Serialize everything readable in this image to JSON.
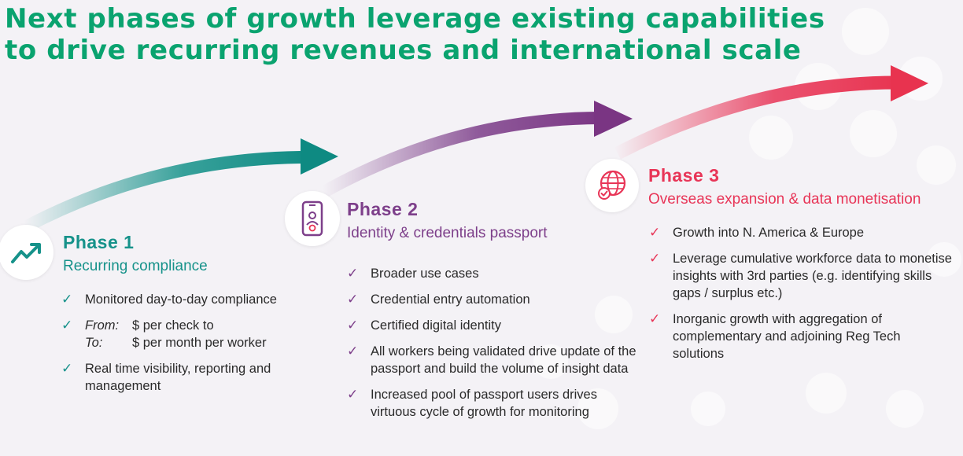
{
  "title": {
    "line1": "Next phases of growth leverage existing capabilities",
    "line2": "to drive recurring revenues and international scale"
  },
  "colors": {
    "title": "#0aa36f",
    "phase1": "#16928a",
    "phase2": "#7d3f8a",
    "phase3": "#e83557"
  },
  "phases": [
    {
      "icon": "trend-up-icon",
      "title": "Phase 1",
      "subtitle": "Recurring compliance",
      "bullets": [
        {
          "text": "Monitored day-to-day compliance"
        },
        {
          "from_label": "From:",
          "from_text": "$ per check to",
          "to_label": "To:",
          "to_text": "$ per month per worker"
        },
        {
          "text": "Real time visibility, reporting and management"
        }
      ]
    },
    {
      "icon": "smartphone-badge-icon",
      "title": "Phase 2",
      "subtitle": "Identity & credentials passport",
      "bullets": [
        {
          "text": "Broader use cases"
        },
        {
          "text": "Credential entry automation"
        },
        {
          "text": "Certified digital identity"
        },
        {
          "text": "All workers being validated drive update of the passport and build the volume of insight data"
        },
        {
          "text": "Increased pool of passport users drives virtuous cycle of growth for monitoring"
        }
      ]
    },
    {
      "icon": "globe-check-icon",
      "title": "Phase 3",
      "subtitle": "Overseas expansion & data monetisation",
      "bullets": [
        {
          "text": "Growth into N. America & Europe"
        },
        {
          "text": "Leverage cumulative workforce data to monetise insights with 3rd parties (e.g. identifying skills gaps / surplus etc.)"
        },
        {
          "text": "Inorganic growth with aggregation of complementary and adjoining Reg Tech solutions"
        }
      ]
    }
  ],
  "tick_glyph": "✓"
}
